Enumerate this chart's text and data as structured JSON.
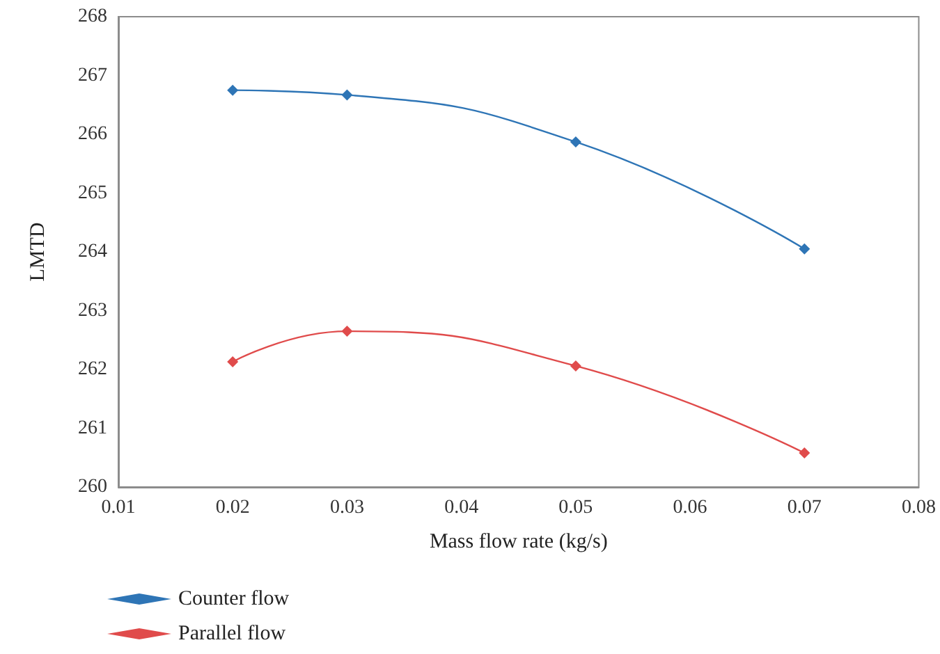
{
  "chart_data": {
    "type": "line",
    "xlabel": "Mass flow rate (kg/s)",
    "ylabel": "LMTD",
    "x": [
      0.02,
      0.03,
      0.05,
      0.07
    ],
    "series": [
      {
        "name": "Counter flow",
        "color": "#2e75b6",
        "values": [
          266.75,
          266.67,
          265.87,
          264.05
        ]
      },
      {
        "name": "Parallel flow",
        "color": "#e04b4b",
        "values": [
          262.13,
          262.65,
          262.06,
          260.58
        ]
      }
    ],
    "xlim": [
      0.01,
      0.08
    ],
    "xticks": [
      0.01,
      0.02,
      0.03,
      0.04,
      0.05,
      0.06,
      0.07,
      0.08
    ],
    "ylim": [
      260,
      268
    ],
    "yticks": [
      260,
      261,
      262,
      263,
      264,
      265,
      266,
      267,
      268
    ],
    "marker": "diamond",
    "line_style": "solid",
    "legend": "bottom left"
  }
}
